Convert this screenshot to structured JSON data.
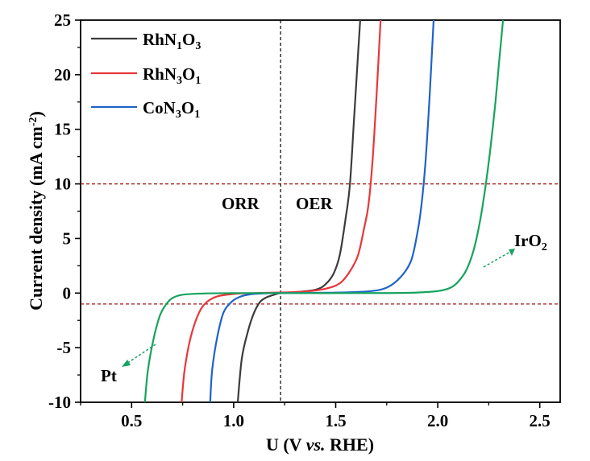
{
  "chart_data": {
    "type": "line",
    "xlabel": {
      "pre": "U (V ",
      "italic": "vs.",
      "post": " RHE)"
    },
    "ylabel": {
      "main": "Current density (mA cm",
      "sup": "-2",
      "close": ")"
    },
    "xlim": [
      0.25,
      2.6
    ],
    "ylim": [
      -10,
      25
    ],
    "x_ticks": [
      0.5,
      1.0,
      1.5,
      2.0,
      2.5
    ],
    "x_tick_labels": [
      "0.5",
      "1.0",
      "1.5",
      "2.0",
      "2.5"
    ],
    "y_ticks": [
      -10,
      -5,
      0,
      5,
      10,
      15,
      20,
      25
    ],
    "y_tick_labels": [
      "-10",
      "-5",
      "0",
      "5",
      "10",
      "15",
      "20",
      "25"
    ],
    "legend_position": "top-left",
    "reference_lines": {
      "horizontal": [
        10,
        -1
      ],
      "vertical": [
        1.23
      ]
    },
    "region_labels": [
      "ORR",
      "OER"
    ],
    "series": [
      {
        "name": {
          "base": "RhN",
          "s1": "1",
          "mid": "O",
          "s2": "3"
        },
        "color": "#3c3c3c",
        "x": [
          1.02,
          1.04,
          1.07,
          1.1,
          1.13,
          1.16,
          1.19,
          1.23,
          1.3,
          1.4,
          1.45,
          1.49,
          1.52,
          1.55,
          1.57,
          1.59,
          1.61,
          1.62
        ],
        "y": [
          -10,
          -6,
          -3.5,
          -1.8,
          -0.8,
          -0.4,
          -0.2,
          0,
          0.08,
          0.3,
          0.8,
          1.8,
          3.5,
          7,
          10,
          16,
          22,
          25
        ]
      },
      {
        "name": {
          "base": "RhN",
          "s1": "3",
          "mid": "O",
          "s2": "1"
        },
        "color": "#e8373a",
        "x": [
          0.745,
          0.76,
          0.79,
          0.83,
          0.87,
          0.92,
          1.0,
          1.1,
          1.23,
          1.35,
          1.45,
          1.52,
          1.57,
          1.61,
          1.64,
          1.66,
          1.68,
          1.7,
          1.72
        ],
        "y": [
          -10,
          -7,
          -4,
          -1.8,
          -0.8,
          -0.3,
          -0.08,
          0,
          0.05,
          0.15,
          0.4,
          0.9,
          2,
          3.5,
          6,
          8,
          12,
          18,
          25
        ]
      },
      {
        "name": {
          "base": "CoN",
          "s1": "3",
          "mid": "O",
          "s2": "1"
        },
        "color": "#1f63c9",
        "x": [
          0.885,
          0.895,
          0.92,
          0.95,
          0.99,
          1.03,
          1.08,
          1.15,
          1.23,
          1.45,
          1.65,
          1.75,
          1.82,
          1.87,
          1.9,
          1.92,
          1.94,
          1.96,
          1.98
        ],
        "y": [
          -10,
          -7,
          -4,
          -1.8,
          -0.8,
          -0.35,
          -0.12,
          -0.03,
          0,
          0.03,
          0.15,
          0.5,
          1.5,
          3,
          5.5,
          8,
          12,
          18,
          25
        ]
      },
      {
        "name": "",
        "color": "#16a35e",
        "x": [
          0.565,
          0.58,
          0.61,
          0.64,
          0.67,
          0.7,
          0.75,
          0.85,
          1.0,
          1.23,
          1.6,
          1.9,
          2.05,
          2.12,
          2.16,
          2.19,
          2.22,
          2.25,
          2.28,
          2.3,
          2.32
        ],
        "y": [
          -10,
          -7,
          -4,
          -2,
          -1,
          -0.45,
          -0.15,
          -0.04,
          0,
          0,
          0,
          0.05,
          0.4,
          1.5,
          3,
          5,
          8,
          12,
          17,
          21,
          25
        ]
      }
    ],
    "annotations": [
      {
        "label": "Pt",
        "color": "#16a35e"
      },
      {
        "label": {
          "base": "IrO",
          "sub": "2"
        },
        "color": "#16a35e"
      }
    ]
  },
  "colors": {
    "reference_dash": "#a01414",
    "divider": "#000000",
    "axis": "#000000"
  }
}
